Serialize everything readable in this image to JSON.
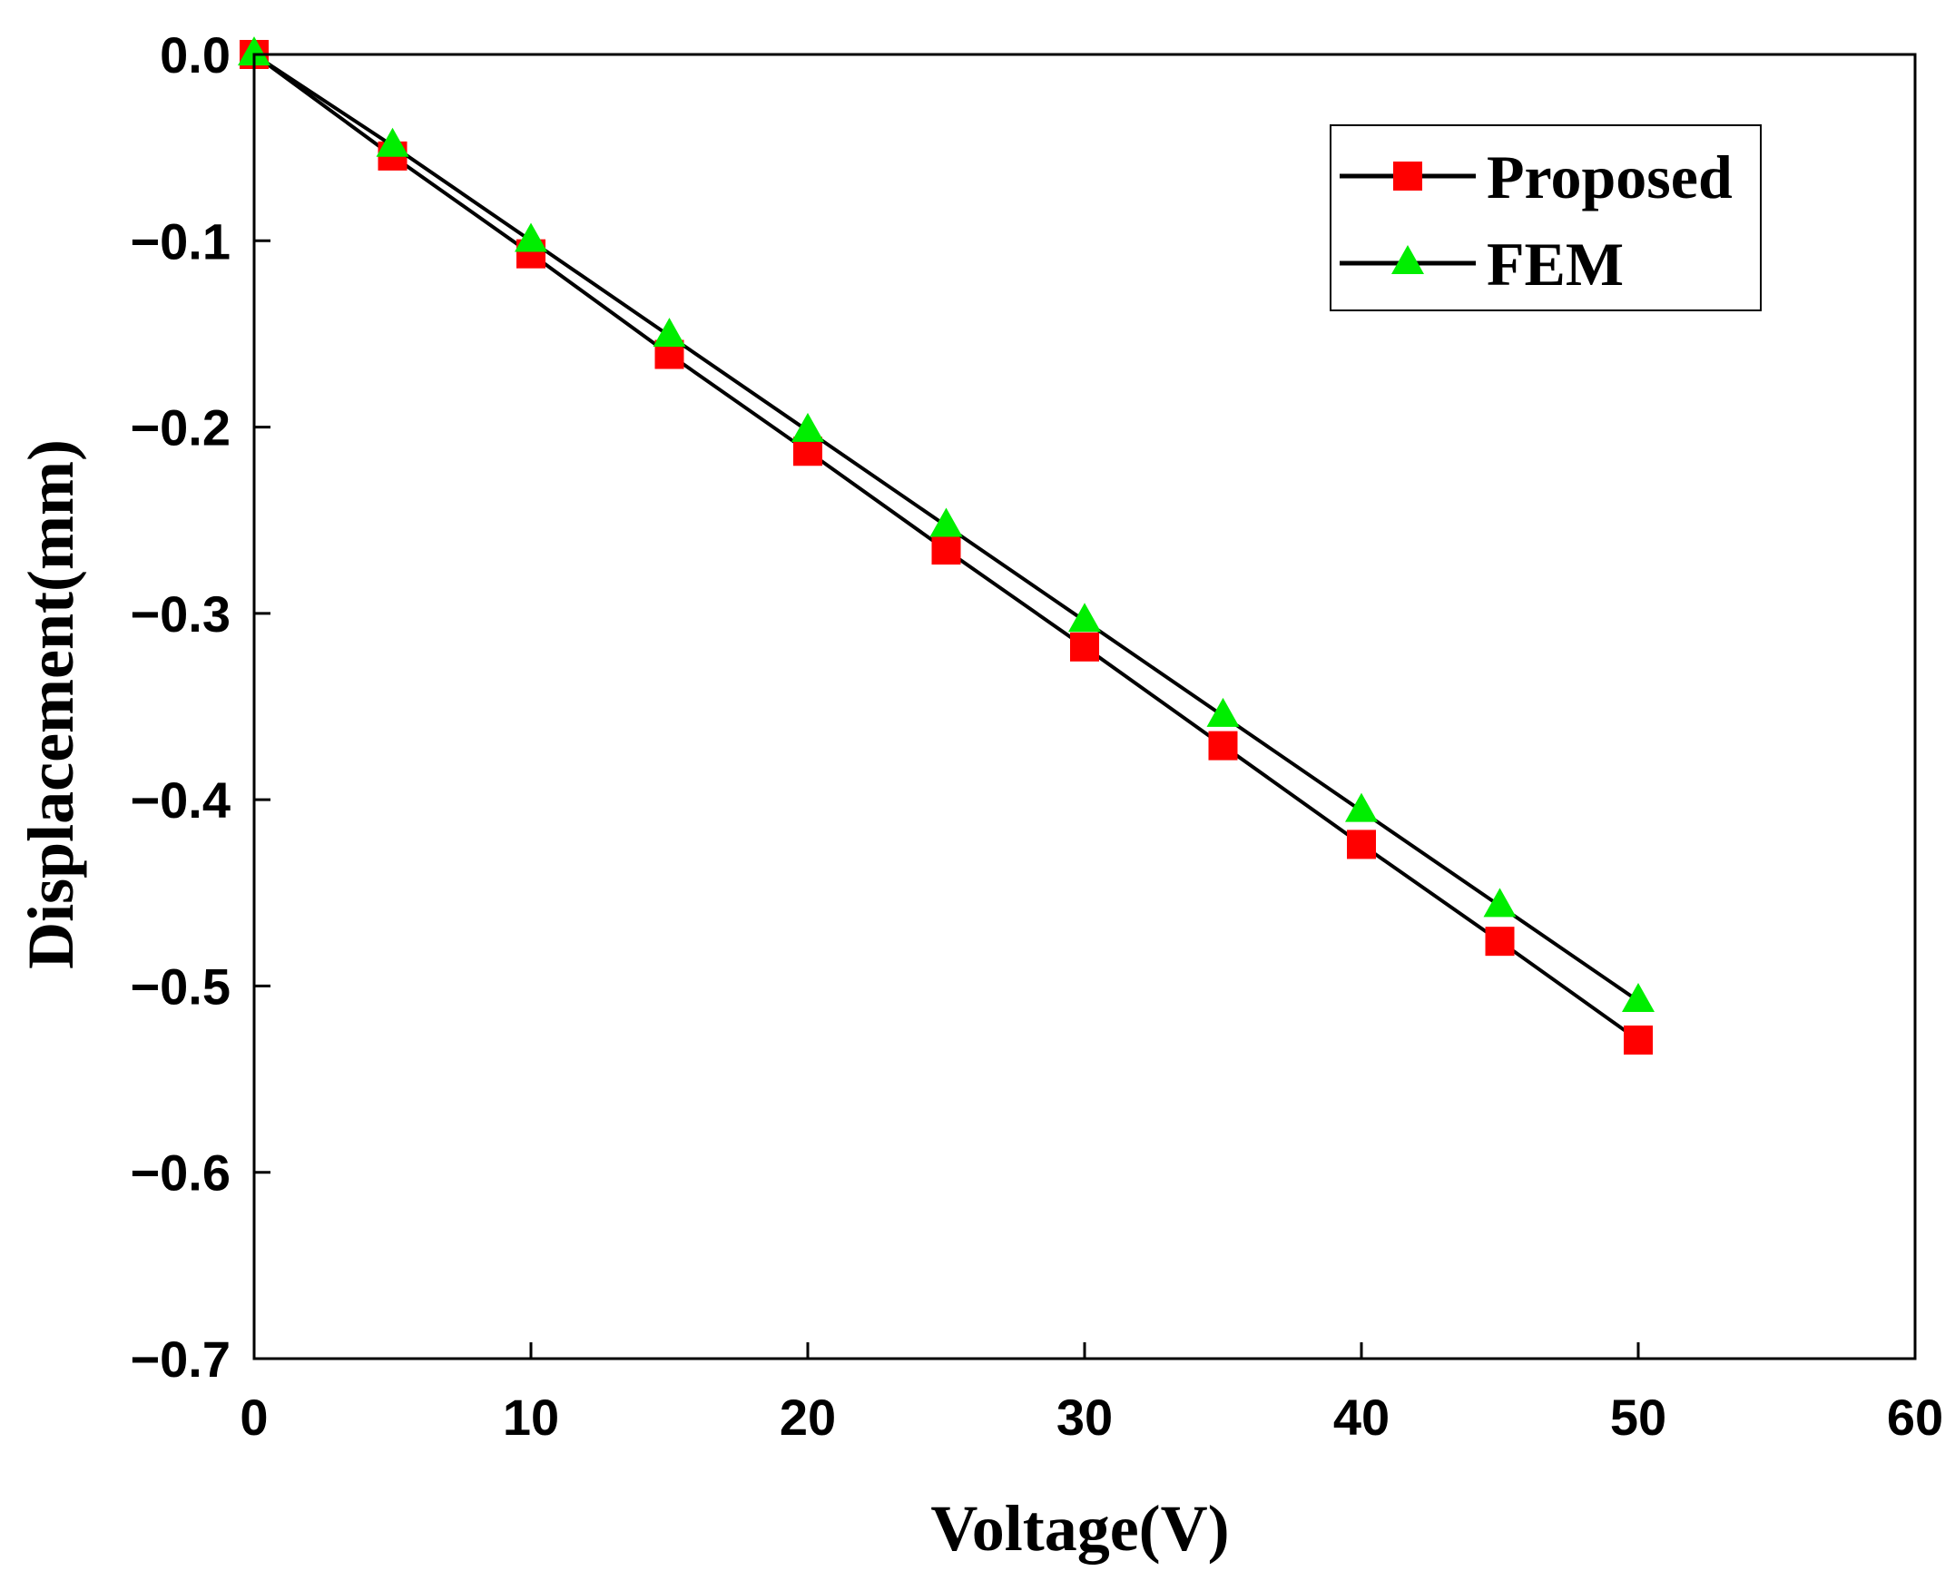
{
  "chart_data": {
    "type": "line",
    "title": "",
    "xlabel": "Voltage(V)",
    "ylabel": "Displacement(mm)",
    "xlim": [
      0,
      60
    ],
    "ylim": [
      -0.7,
      0.0
    ],
    "x_ticks": [
      0,
      10,
      20,
      30,
      40,
      50,
      60
    ],
    "y_ticks": [
      0.0,
      -0.1,
      -0.2,
      -0.3,
      -0.4,
      -0.5,
      -0.6,
      -0.7
    ],
    "x_tick_labels": [
      "0",
      "10",
      "20",
      "30",
      "40",
      "50",
      "60"
    ],
    "y_tick_labels": [
      "0.0",
      "−0.1",
      "−0.2",
      "−0.3",
      "−0.4",
      "−0.5",
      "−0.6",
      "−0.7"
    ],
    "grid": false,
    "legend_position": "top-right",
    "x": [
      0,
      5,
      10,
      15,
      20,
      25,
      30,
      35,
      40,
      45,
      50
    ],
    "series": [
      {
        "name": "Proposed",
        "marker": "square",
        "color": "#ff0000",
        "line_color": "#000000",
        "values": [
          0.0,
          -0.0545,
          -0.107,
          -0.161,
          -0.213,
          -0.266,
          -0.318,
          -0.371,
          -0.424,
          -0.476,
          -0.529
        ]
      },
      {
        "name": "FEM",
        "marker": "triangle",
        "color": "#00ee00",
        "line_color": "#000000",
        "values": [
          0.0,
          -0.049,
          -0.1,
          -0.151,
          -0.202,
          -0.253,
          -0.304,
          -0.355,
          -0.406,
          -0.457,
          -0.508
        ]
      }
    ]
  }
}
